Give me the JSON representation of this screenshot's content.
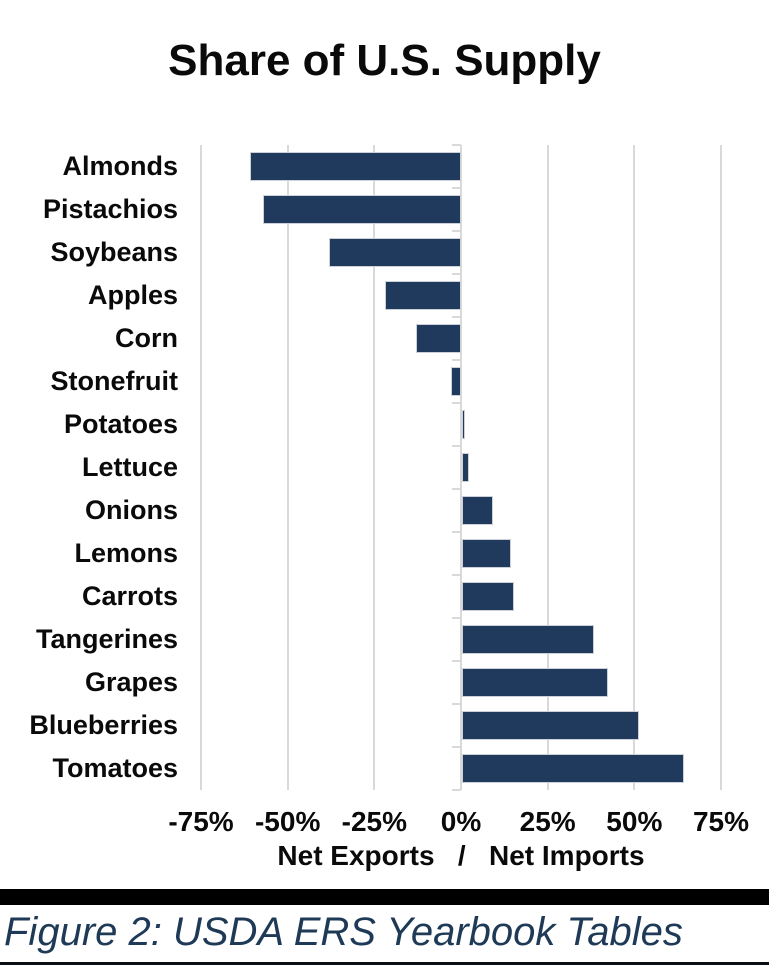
{
  "chart_data": {
    "type": "bar",
    "orientation": "horizontal",
    "title": "Share of U.S. Supply",
    "categories": [
      "Almonds",
      "Pistachios",
      "Soybeans",
      "Apples",
      "Corn",
      "Stonefruit",
      "Potatoes",
      "Lettuce",
      "Onions",
      "Lemons",
      "Carrots",
      "Tangerines",
      "Grapes",
      "Blueberries",
      "Tomatoes"
    ],
    "values": [
      -61,
      -57,
      -38,
      -22,
      -13,
      -3,
      1,
      2,
      9,
      14,
      15,
      38,
      42,
      51,
      64
    ],
    "unit": "%",
    "xlabel": "Net Exports   /   Net Imports",
    "x_ticks": [
      -75,
      -50,
      -25,
      0,
      25,
      50,
      75
    ],
    "x_tick_labels": [
      "-75%",
      "-50%",
      "-25%",
      "0%",
      "25%",
      "50%",
      "75%"
    ],
    "xlim": [
      -75,
      75
    ],
    "grid": true,
    "legend": null,
    "bar_color": "#1f3a5c",
    "gridline_color": "#d9d9d9",
    "label_color": "#0a0a0a"
  },
  "caption": {
    "text": "Figure 2: USDA ERS Yearbook Tables",
    "color": "#1e3a57"
  }
}
